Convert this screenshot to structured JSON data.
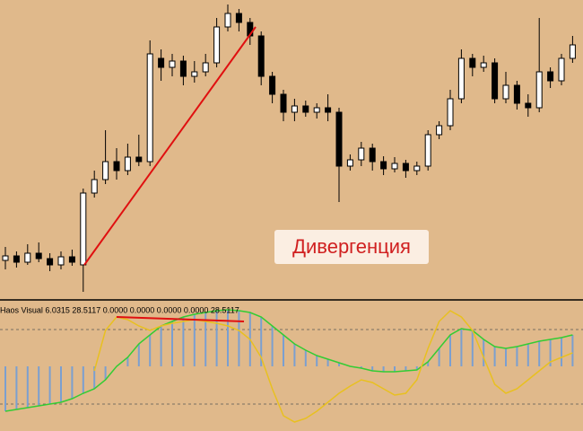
{
  "chart_data": [
    {
      "type": "candlestick",
      "open": [
        40,
        45,
        38,
        48,
        42,
        35,
        44,
        35,
        115,
        130,
        150,
        140,
        155,
        150,
        265,
        255,
        262,
        245,
        250,
        260,
        300,
        315,
        305,
        290,
        245,
        225,
        205,
        212,
        205,
        210,
        205,
        145,
        152,
        165,
        150,
        142,
        148,
        140,
        145,
        180,
        190,
        220,
        265,
        255,
        260,
        220,
        235,
        215,
        210,
        250,
        240,
        265
      ],
      "high": [
        55,
        50,
        58,
        60,
        48,
        50,
        52,
        120,
        140,
        185,
        165,
        170,
        180,
        285,
        275,
        270,
        268,
        262,
        270,
        310,
        325,
        320,
        310,
        295,
        250,
        230,
        220,
        218,
        215,
        225,
        210,
        158,
        172,
        170,
        156,
        155,
        152,
        150,
        185,
        195,
        230,
        275,
        270,
        268,
        265,
        250,
        240,
        225,
        310,
        255,
        270,
        290
      ],
      "low": [
        30,
        32,
        35,
        38,
        28,
        30,
        34,
        5,
        110,
        125,
        130,
        135,
        145,
        145,
        240,
        245,
        235,
        238,
        245,
        255,
        295,
        295,
        280,
        235,
        215,
        195,
        195,
        200,
        198,
        195,
        105,
        140,
        145,
        140,
        135,
        138,
        132,
        135,
        140,
        175,
        185,
        215,
        245,
        250,
        215,
        215,
        208,
        200,
        205,
        232,
        235,
        260
      ],
      "close": [
        45,
        38,
        48,
        42,
        35,
        44,
        38,
        115,
        130,
        150,
        140,
        155,
        150,
        270,
        255,
        262,
        245,
        250,
        260,
        300,
        315,
        305,
        290,
        245,
        225,
        205,
        212,
        205,
        210,
        205,
        145,
        152,
        165,
        150,
        142,
        148,
        140,
        145,
        180,
        190,
        220,
        265,
        255,
        260,
        220,
        235,
        215,
        210,
        250,
        240,
        265,
        280
      ],
      "up_color": "#ffffff",
      "down_color": "#000000",
      "ylim": [
        0,
        330
      ],
      "annotation": "Дивергенция"
    },
    {
      "type": "bar",
      "title": "Haos Visual 6.0315 28.5117 0.0000 0.0000 0.0000 0.0000 28.5117",
      "values": [
        -50,
        -48,
        -46,
        -44,
        -42,
        -40,
        -36,
        -30,
        -25,
        -15,
        0,
        10,
        25,
        35,
        45,
        50,
        55,
        58,
        60,
        62,
        63,
        62,
        60,
        55,
        45,
        35,
        25,
        18,
        12,
        8,
        4,
        0,
        -2,
        -5,
        -6,
        -6,
        -5,
        -4,
        5,
        20,
        35,
        42,
        40,
        30,
        22,
        20,
        22,
        25,
        28,
        30,
        32,
        35
      ],
      "color": "#7b9fd0",
      "line_color": "#33cc33",
      "series": [
        {
          "color": "#e8c020",
          "values": [
            null,
            null,
            null,
            null,
            null,
            null,
            null,
            null,
            -5,
            40,
            55,
            52,
            45,
            40,
            45,
            48,
            50,
            52,
            50,
            48,
            45,
            40,
            30,
            10,
            -25,
            -55,
            -62,
            -58,
            -50,
            -40,
            -30,
            -22,
            -15,
            -18,
            -25,
            -32,
            -30,
            -15,
            20,
            50,
            62,
            55,
            40,
            10,
            -20,
            -30,
            -25,
            -15,
            -5,
            5,
            10,
            15
          ]
        }
      ],
      "ylim": [
        -72,
        72
      ],
      "levels": [
        41,
        -42
      ]
    }
  ]
}
